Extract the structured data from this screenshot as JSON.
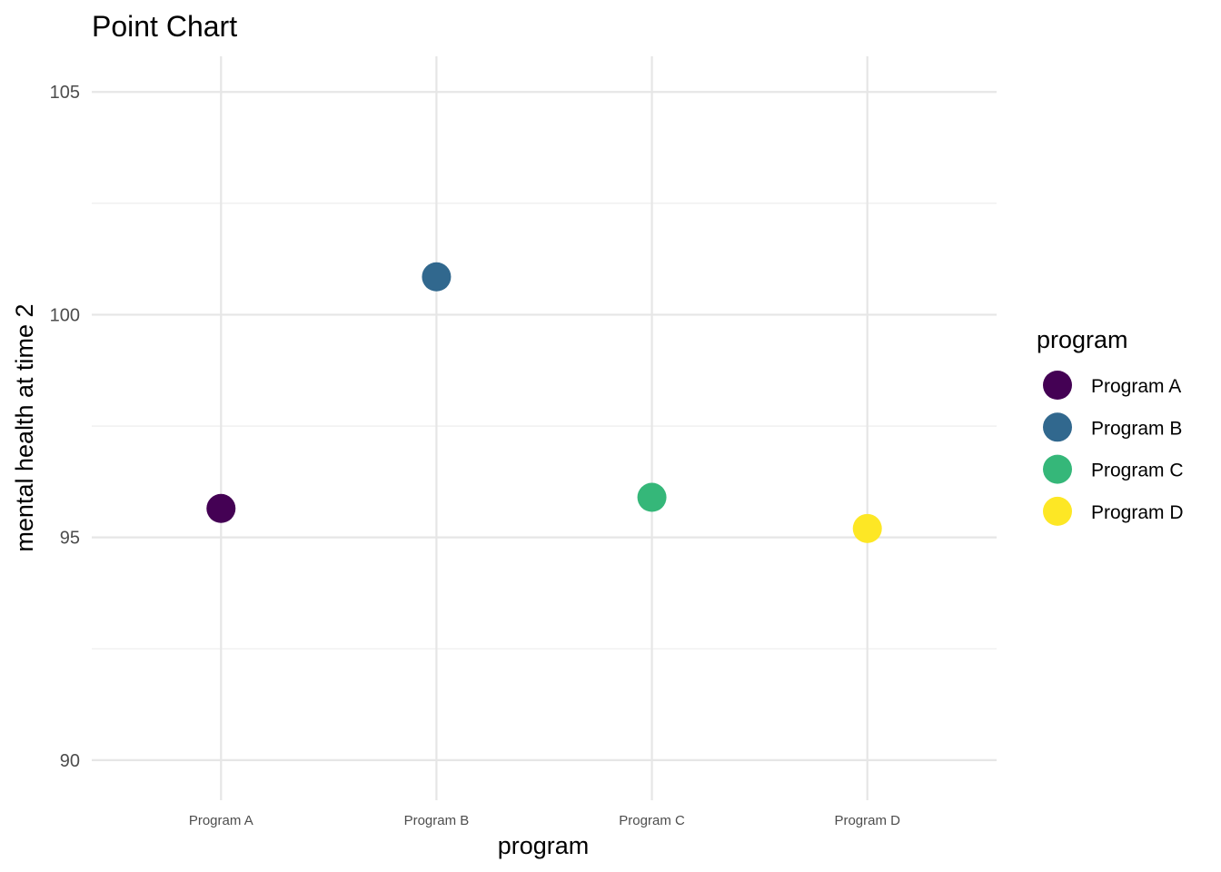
{
  "chart_data": {
    "type": "scatter",
    "title": "Point Chart",
    "xlabel": "program",
    "ylabel": "mental health at time 2",
    "categories": [
      "Program A",
      "Program B",
      "Program C",
      "Program D"
    ],
    "values": [
      95.65,
      100.85,
      95.9,
      95.2
    ],
    "ylim": [
      89.1,
      105.8
    ],
    "yticks": [
      90,
      95,
      100,
      105
    ],
    "grid": true,
    "legend": {
      "title": "program",
      "position": "right",
      "entries": [
        "Program A",
        "Program B",
        "Program C",
        "Program D"
      ]
    },
    "colors": [
      "#440154",
      "#31688e",
      "#35b779",
      "#fde725"
    ]
  }
}
